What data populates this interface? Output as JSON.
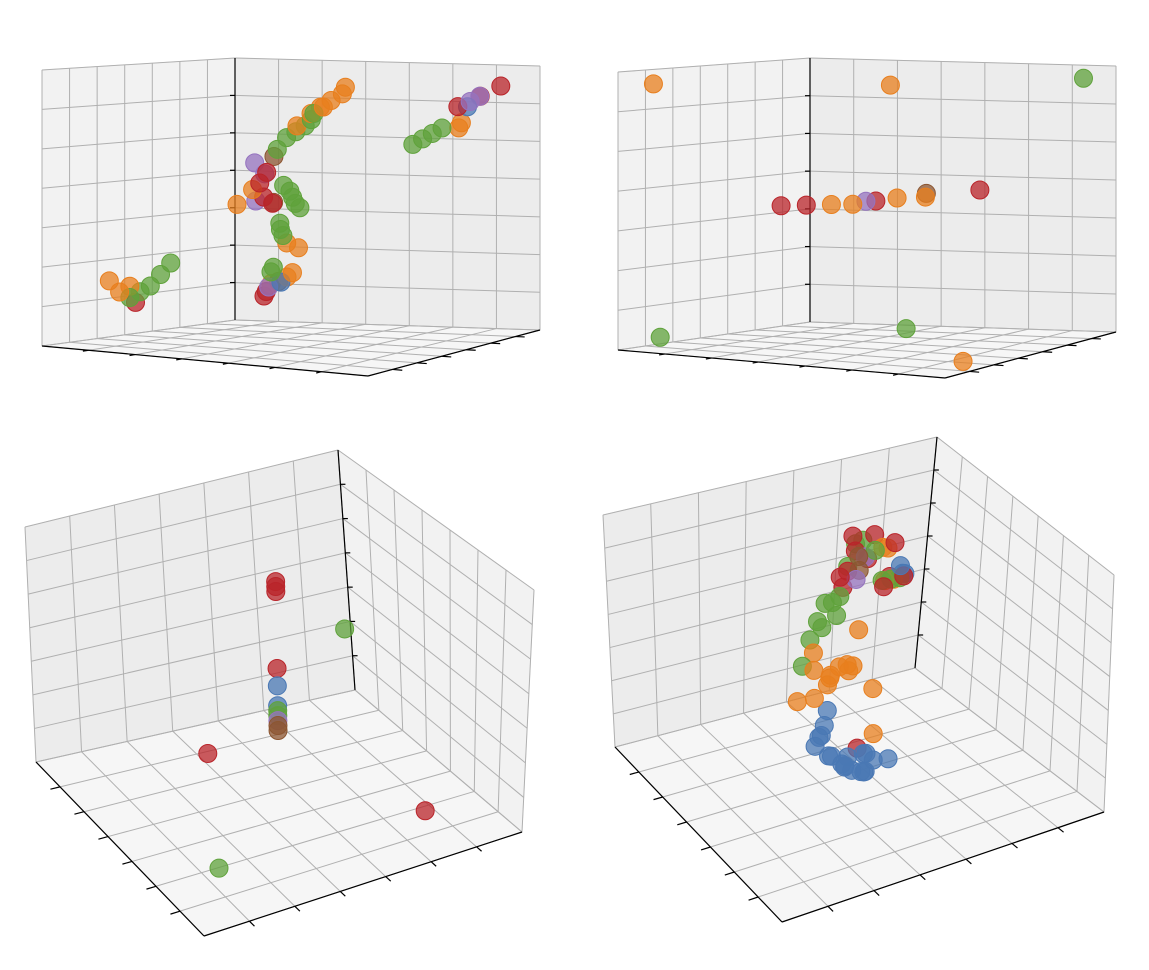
{
  "figure": {
    "colors": {
      "blue": "#4a78b4",
      "orange": "#e87f1e",
      "green": "#5fa23b",
      "red": "#b9242a",
      "purple": "#9573bf",
      "brown": "#8c5631",
      "pane_left": "#f2f2f2",
      "pane_right": "#ececec",
      "pane_floor": "#f6f6f6",
      "grid": "#b0b0b0"
    }
  },
  "chart_data": [
    {
      "type": "scatter",
      "subtype": "3d",
      "title": "",
      "xlabel": "",
      "ylabel": "",
      "zlabel": "",
      "xlim": [
        0,
        1
      ],
      "ylim": [
        0,
        1
      ],
      "zlim": [
        0,
        1
      ],
      "tick_labels": false,
      "grid": true,
      "legend": "none",
      "series": [
        {
          "color": "orange",
          "points": [
            [
              0.92,
              0.02,
              0.9
            ],
            [
              0.9,
              0.04,
              0.88
            ],
            [
              0.86,
              0.05,
              0.86
            ],
            [
              0.82,
              0.08,
              0.84
            ],
            [
              0.8,
              0.1,
              0.84
            ],
            [
              0.76,
              0.12,
              0.82
            ],
            [
              0.7,
              0.15,
              0.78
            ],
            [
              0.25,
              0.9,
              0.2
            ],
            [
              0.22,
              0.92,
              0.18
            ],
            [
              0.8,
              0.9,
              0.78
            ],
            [
              0.78,
              0.92,
              0.76
            ],
            [
              0.18,
              0.1,
              0.2
            ],
            [
              0.2,
              0.12,
              0.22
            ],
            [
              0.16,
              0.08,
              0.24
            ],
            [
              0.4,
              0.35,
              0.5
            ],
            [
              0.42,
              0.4,
              0.55
            ],
            [
              0.3,
              0.85,
              0.3
            ],
            [
              0.28,
              0.82,
              0.32
            ],
            [
              0.15,
              0.95,
              0.15
            ]
          ]
        },
        {
          "color": "green",
          "points": [
            [
              0.78,
              0.1,
              0.82
            ],
            [
              0.75,
              0.14,
              0.8
            ],
            [
              0.72,
              0.16,
              0.78
            ],
            [
              0.68,
              0.18,
              0.76
            ],
            [
              0.64,
              0.2,
              0.74
            ],
            [
              0.6,
              0.22,
              0.7
            ],
            [
              0.2,
              0.12,
              0.18
            ],
            [
              0.22,
              0.14,
              0.2
            ],
            [
              0.24,
              0.16,
              0.22
            ],
            [
              0.26,
              0.18,
              0.26
            ],
            [
              0.28,
              0.2,
              0.3
            ],
            [
              0.5,
              0.48,
              0.52
            ],
            [
              0.48,
              0.5,
              0.54
            ],
            [
              0.52,
              0.46,
              0.5
            ],
            [
              0.5,
              0.52,
              0.48
            ],
            [
              0.46,
              0.5,
              0.56
            ],
            [
              0.7,
              0.8,
              0.7
            ],
            [
              0.72,
              0.82,
              0.72
            ],
            [
              0.74,
              0.84,
              0.74
            ],
            [
              0.76,
              0.86,
              0.76
            ],
            [
              0.3,
              0.75,
              0.4
            ],
            [
              0.32,
              0.72,
              0.38
            ],
            [
              0.34,
              0.7,
              0.36
            ],
            [
              0.2,
              0.88,
              0.22
            ],
            [
              0.18,
              0.9,
              0.2
            ]
          ]
        },
        {
          "color": "red",
          "points": [
            [
              0.55,
              0.25,
              0.62
            ],
            [
              0.5,
              0.3,
              0.58
            ],
            [
              0.2,
              0.15,
              0.16
            ],
            [
              0.42,
              0.46,
              0.52
            ],
            [
              0.46,
              0.44,
              0.5
            ],
            [
              0.9,
              0.95,
              0.92
            ],
            [
              0.85,
              0.92,
              0.88
            ],
            [
              0.8,
              0.88,
              0.84
            ],
            [
              0.14,
              0.94,
              0.12
            ],
            [
              0.12,
              0.96,
              0.1
            ]
          ]
        },
        {
          "color": "purple",
          "points": [
            [
              0.38,
              0.48,
              0.64
            ],
            [
              0.4,
              0.5,
              0.6
            ],
            [
              0.86,
              0.9,
              0.88
            ],
            [
              0.84,
              0.88,
              0.86
            ],
            [
              0.16,
              0.92,
              0.14
            ],
            [
              0.36,
              0.52,
              0.5
            ]
          ]
        },
        {
          "color": "brown",
          "points": [
            [
              0.4,
              0.55,
              0.66
            ],
            [
              0.44,
              0.48,
              0.5
            ],
            [
              0.18,
              0.94,
              0.16
            ]
          ]
        },
        {
          "color": "blue",
          "points": [
            [
              0.82,
              0.9,
              0.84
            ],
            [
              0.2,
              0.92,
              0.16
            ]
          ]
        }
      ]
    },
    {
      "type": "scatter",
      "subtype": "3d",
      "title": "",
      "xlabel": "",
      "ylabel": "",
      "zlabel": "",
      "xlim": [
        0,
        1
      ],
      "ylim": [
        0,
        1
      ],
      "zlim": [
        0,
        1
      ],
      "tick_labels": false,
      "grid": true,
      "legend": "none",
      "series": [
        {
          "color": "orange",
          "points": [
            [
              0.05,
              0.1,
              0.95
            ],
            [
              0.5,
              0.6,
              0.92
            ],
            [
              0.95,
              0.2,
              0.02
            ],
            [
              0.4,
              0.45,
              0.5
            ],
            [
              0.45,
              0.48,
              0.5
            ],
            [
              0.55,
              0.55,
              0.52
            ],
            [
              0.6,
              0.62,
              0.52
            ]
          ]
        },
        {
          "color": "green",
          "points": [
            [
              0.95,
              0.9,
              0.95
            ],
            [
              0.1,
              0.05,
              0.05
            ],
            [
              0.55,
              0.6,
              0.05
            ]
          ]
        },
        {
          "color": "red",
          "points": [
            [
              0.3,
              0.35,
              0.5
            ],
            [
              0.35,
              0.4,
              0.5
            ],
            [
              0.5,
              0.52,
              0.51
            ],
            [
              0.7,
              0.75,
              0.54
            ]
          ]
        },
        {
          "color": "purple",
          "points": [
            [
              0.48,
              0.5,
              0.51
            ]
          ]
        },
        {
          "color": "brown",
          "points": [
            [
              0.58,
              0.66,
              0.53
            ]
          ]
        }
      ]
    },
    {
      "type": "scatter",
      "subtype": "3d",
      "title": "",
      "xlabel": "",
      "ylabel": "",
      "zlabel": "",
      "xlim": [
        0,
        1
      ],
      "ylim": [
        0,
        1
      ],
      "zlim": [
        0,
        1
      ],
      "tick_labels": false,
      "grid": true,
      "legend": "none",
      "series": [
        {
          "color": "red",
          "points": [
            [
              0.5,
              0.5,
              0.9
            ],
            [
              0.5,
              0.5,
              0.88
            ],
            [
              0.5,
              0.5,
              0.86
            ],
            [
              0.5,
              0.5,
              0.55
            ],
            [
              0.2,
              0.35,
              0.4
            ],
            [
              0.8,
              0.2,
              0.05
            ]
          ]
        },
        {
          "color": "blue",
          "points": [
            [
              0.5,
              0.5,
              0.48
            ],
            [
              0.5,
              0.5,
              0.4
            ]
          ]
        },
        {
          "color": "green",
          "points": [
            [
              0.5,
              0.5,
              0.38
            ],
            [
              0.5,
              0.5,
              0.36
            ],
            [
              0.1,
              0.1,
              0.15
            ],
            [
              0.85,
              0.75,
              0.45
            ]
          ]
        },
        {
          "color": "purple",
          "points": [
            [
              0.5,
              0.5,
              0.34
            ]
          ]
        },
        {
          "color": "brown",
          "points": [
            [
              0.5,
              0.5,
              0.32
            ],
            [
              0.5,
              0.5,
              0.3
            ]
          ]
        }
      ]
    },
    {
      "type": "scatter",
      "subtype": "3d",
      "title": "",
      "xlabel": "",
      "ylabel": "",
      "zlabel": "",
      "xlim": [
        0,
        1
      ],
      "ylim": [
        0,
        1
      ],
      "zlim": [
        0,
        1
      ],
      "tick_labels": false,
      "grid": true,
      "legend": "none",
      "series": [
        {
          "color": "blue",
          "points": [
            [
              0.25,
              0.2,
              0.4
            ],
            [
              0.27,
              0.22,
              0.38
            ],
            [
              0.29,
              0.18,
              0.36
            ],
            [
              0.23,
              0.24,
              0.42
            ],
            [
              0.3,
              0.2,
              0.34
            ],
            [
              0.32,
              0.22,
              0.36
            ],
            [
              0.26,
              0.26,
              0.44
            ],
            [
              0.34,
              0.18,
              0.32
            ],
            [
              0.28,
              0.28,
              0.46
            ],
            [
              0.36,
              0.2,
              0.3
            ],
            [
              0.22,
              0.2,
              0.48
            ],
            [
              0.38,
              0.24,
              0.34
            ],
            [
              0.3,
              0.3,
              0.5
            ],
            [
              0.33,
              0.27,
              0.3
            ],
            [
              0.35,
              0.25,
              0.28
            ],
            [
              0.4,
              0.22,
              0.32
            ],
            [
              0.45,
              0.35,
              0.25
            ],
            [
              0.6,
              0.45,
              0.9
            ],
            [
              0.88,
              0.92,
              0.5
            ],
            [
              0.9,
              0.94,
              0.48
            ],
            [
              0.42,
              0.3,
              0.22
            ],
            [
              0.48,
              0.28,
              0.26
            ]
          ]
        },
        {
          "color": "orange",
          "points": [
            [
              0.3,
              0.3,
              0.6
            ],
            [
              0.32,
              0.32,
              0.62
            ],
            [
              0.28,
              0.34,
              0.64
            ],
            [
              0.34,
              0.36,
              0.58
            ],
            [
              0.36,
              0.3,
              0.66
            ],
            [
              0.26,
              0.3,
              0.56
            ],
            [
              0.38,
              0.38,
              0.6
            ],
            [
              0.4,
              0.34,
              0.62
            ],
            [
              0.3,
              0.38,
              0.68
            ],
            [
              0.42,
              0.4,
              0.56
            ],
            [
              0.24,
              0.36,
              0.52
            ],
            [
              0.44,
              0.3,
              0.54
            ],
            [
              0.6,
              0.55,
              0.92
            ],
            [
              0.7,
              0.7,
              0.8
            ],
            [
              0.5,
              0.4,
              0.28
            ],
            [
              0.8,
              0.88,
              0.52
            ],
            [
              0.84,
              0.9,
              0.5
            ],
            [
              0.46,
              0.42,
              0.7
            ]
          ]
        },
        {
          "color": "green",
          "points": [
            [
              0.35,
              0.45,
              0.75
            ],
            [
              0.4,
              0.5,
              0.78
            ],
            [
              0.45,
              0.55,
              0.74
            ],
            [
              0.5,
              0.6,
              0.72
            ],
            [
              0.55,
              0.65,
              0.8
            ],
            [
              0.3,
              0.4,
              0.72
            ],
            [
              0.25,
              0.35,
              0.66
            ],
            [
              0.6,
              0.7,
              0.85
            ],
            [
              0.65,
              0.75,
              0.82
            ],
            [
              0.55,
              0.5,
              0.95
            ],
            [
              0.78,
              0.86,
              0.54
            ],
            [
              0.82,
              0.88,
              0.52
            ],
            [
              0.86,
              0.9,
              0.5
            ],
            [
              0.48,
              0.58,
              0.66
            ],
            [
              0.38,
              0.48,
              0.7
            ]
          ]
        },
        {
          "color": "red",
          "points": [
            [
              0.5,
              0.6,
              0.8
            ],
            [
              0.55,
              0.65,
              0.78
            ],
            [
              0.6,
              0.7,
              0.82
            ],
            [
              0.65,
              0.72,
              0.76
            ],
            [
              0.58,
              0.68,
              0.9
            ],
            [
              0.62,
              0.52,
              0.95
            ],
            [
              0.75,
              0.8,
              0.56
            ],
            [
              0.86,
              0.88,
              0.52
            ],
            [
              0.84,
              0.92,
              0.5
            ],
            [
              0.45,
              0.4,
              0.24
            ],
            [
              0.52,
              0.62,
              0.74
            ],
            [
              0.68,
              0.74,
              0.84
            ]
          ]
        },
        {
          "color": "purple",
          "points": [
            [
              0.56,
              0.62,
              0.76
            ],
            [
              0.62,
              0.68,
              0.8
            ]
          ]
        },
        {
          "color": "brown",
          "points": [
            [
              0.5,
              0.5,
              0.94
            ],
            [
              0.58,
              0.64,
              0.78
            ]
          ]
        }
      ]
    }
  ]
}
